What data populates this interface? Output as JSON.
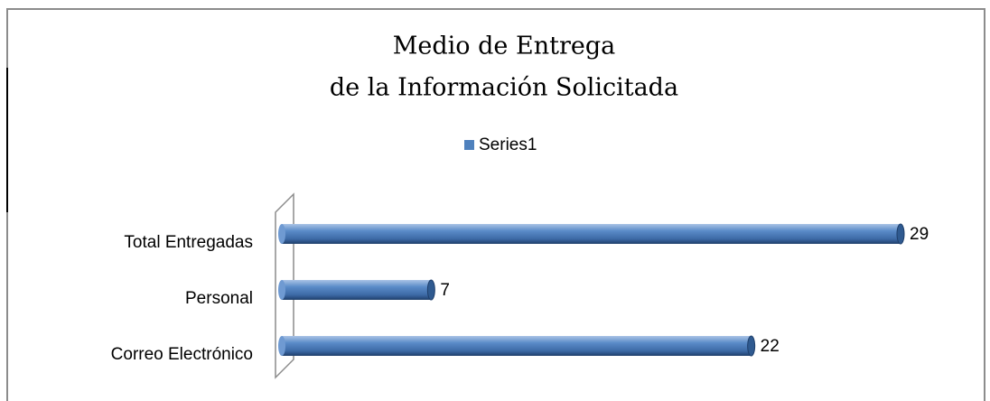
{
  "chart_data": {
    "type": "bar",
    "orientation": "horizontal",
    "title": [
      "Medio de Entrega",
      "de la Información Solicitada"
    ],
    "categories": [
      "Total Entregadas",
      "Personal",
      "Correo Electrónico"
    ],
    "series": [
      {
        "name": "Series1",
        "color": "#4f81bd",
        "values": [
          29,
          7,
          22
        ]
      }
    ],
    "legend": "top"
  }
}
